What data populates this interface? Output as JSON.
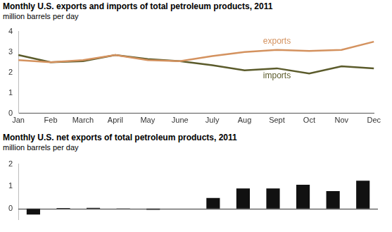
{
  "chart_data": [
    {
      "type": "line",
      "title": "Monthly U.S. exports and imports of total petroleum products, 2011",
      "subtitle": "million barrels per day",
      "categories": [
        "Jan",
        "Feb",
        "March",
        "April",
        "May",
        "June",
        "July",
        "Aug",
        "Sept",
        "Oct",
        "Nov",
        "Dec"
      ],
      "series": [
        {
          "name": "exports",
          "color": "#d4925f",
          "values": [
            2.6,
            2.5,
            2.6,
            2.85,
            2.6,
            2.55,
            2.8,
            3.0,
            3.1,
            3.05,
            3.1,
            3.5
          ]
        },
        {
          "name": "imports",
          "color": "#5b5b2b",
          "values": [
            2.85,
            2.5,
            2.55,
            2.85,
            2.65,
            2.55,
            2.35,
            2.1,
            2.2,
            1.95,
            2.3,
            2.2
          ]
        }
      ],
      "ylim": [
        0,
        4
      ],
      "yticks": [
        0,
        1,
        2,
        3,
        4
      ],
      "grid": false
    },
    {
      "type": "bar",
      "title": "Monthly U.S. net exports of total petroleum products, 2011",
      "subtitle": "million barrels per day",
      "categories": [
        null,
        null,
        null,
        null,
        null,
        null,
        null,
        null,
        null,
        null,
        null,
        null
      ],
      "values": [
        -0.27,
        0.02,
        0.03,
        -0.02,
        -0.06,
        0,
        0.47,
        0.9,
        0.9,
        1.07,
        0.78,
        1.25
      ],
      "color": "#111111",
      "ylim": [
        -0.5,
        2
      ],
      "yticks": [
        0,
        1,
        2
      ],
      "grid": false,
      "tick_labels": "y"
    }
  ]
}
